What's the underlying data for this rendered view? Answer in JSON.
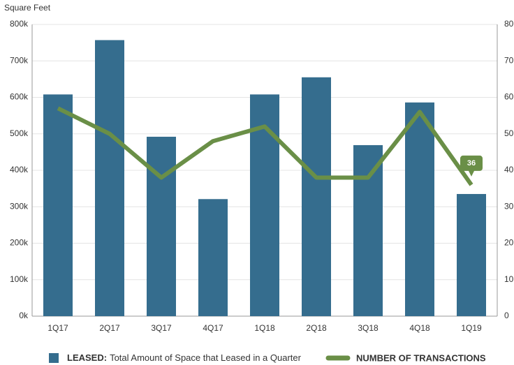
{
  "chart_data": {
    "type": "bar_line",
    "y_axis_label": "Square Feet",
    "categories": [
      "1Q17",
      "2Q17",
      "3Q17",
      "4Q17",
      "1Q18",
      "2Q18",
      "3Q18",
      "4Q18",
      "1Q19"
    ],
    "series": [
      {
        "name": "LEASED:",
        "description": "Total Amount of Space that Leased in a Quarter",
        "type": "bar",
        "color": "#356d8e",
        "values": [
          608000,
          757000,
          492000,
          321000,
          608000,
          655000,
          469000,
          586000,
          335000
        ]
      },
      {
        "name": "NUMBER OF TRANSACTIONS",
        "type": "line",
        "axis": "y2",
        "color": "#6a8f47",
        "values": [
          57,
          50,
          38,
          48,
          52,
          38,
          38,
          56,
          36
        ]
      }
    ],
    "annotation_point": 8,
    "ylim": [
      0,
      800000
    ],
    "yticks": [
      {
        "value": 0,
        "label": "0k"
      },
      {
        "value": 100000,
        "label": "100k"
      },
      {
        "value": 200000,
        "label": "200k"
      },
      {
        "value": 300000,
        "label": "300k"
      },
      {
        "value": 400000,
        "label": "400k"
      },
      {
        "value": 500000,
        "label": "500k"
      },
      {
        "value": 600000,
        "label": "600k"
      },
      {
        "value": 700000,
        "label": "700k"
      },
      {
        "value": 800000,
        "label": "800k"
      }
    ],
    "y2lim": [
      0,
      80
    ],
    "y2ticks": [
      0,
      10,
      20,
      30,
      40,
      50,
      60,
      70,
      80
    ],
    "grid": true
  }
}
